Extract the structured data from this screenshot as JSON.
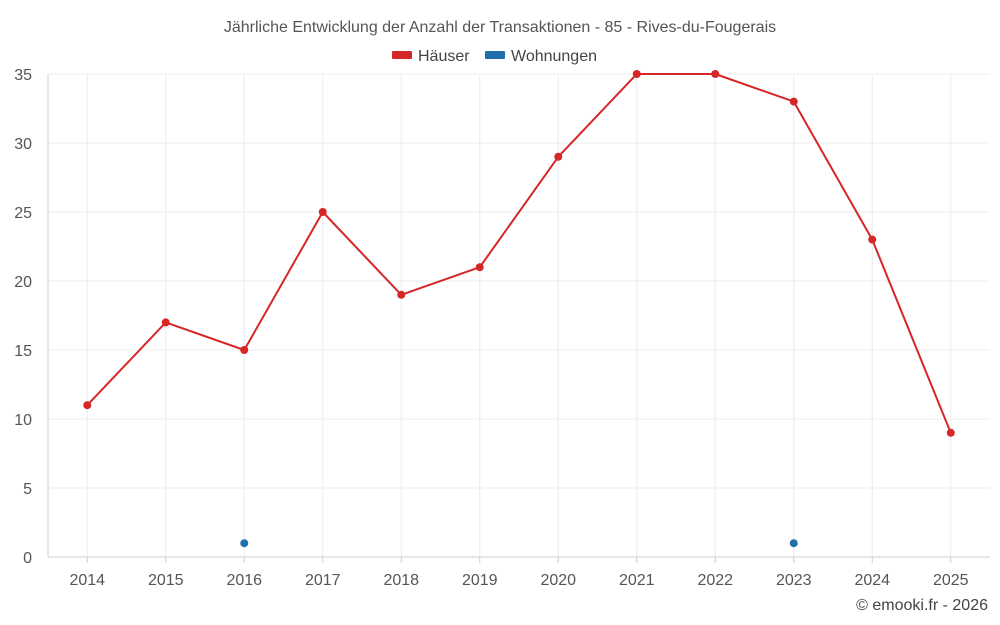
{
  "chart_data": {
    "type": "line",
    "title": "Jährliche Entwicklung der Anzahl der Transaktionen - 85 - Rives-du-Fougerais",
    "xlabel": "",
    "ylabel": "",
    "categories": [
      "2014",
      "2015",
      "2016",
      "2017",
      "2018",
      "2019",
      "2020",
      "2021",
      "2022",
      "2023",
      "2024",
      "2025"
    ],
    "ylim": [
      0,
      35
    ],
    "yticks": [
      0,
      5,
      10,
      15,
      20,
      25,
      30,
      35
    ],
    "grid": true,
    "legend_position": "top-center",
    "series": [
      {
        "name": "Häuser",
        "color": "#d62728",
        "style": "line",
        "values": [
          11,
          17,
          15,
          25,
          19,
          21,
          29,
          35,
          35,
          33,
          23,
          9
        ]
      },
      {
        "name": "Wohnungen",
        "color": "#1f6fa8",
        "style": "points",
        "values": [
          null,
          null,
          1,
          null,
          null,
          null,
          null,
          null,
          null,
          1,
          null,
          null
        ]
      }
    ]
  },
  "footer": {
    "copyright": "© emooki.fr - 2026"
  }
}
